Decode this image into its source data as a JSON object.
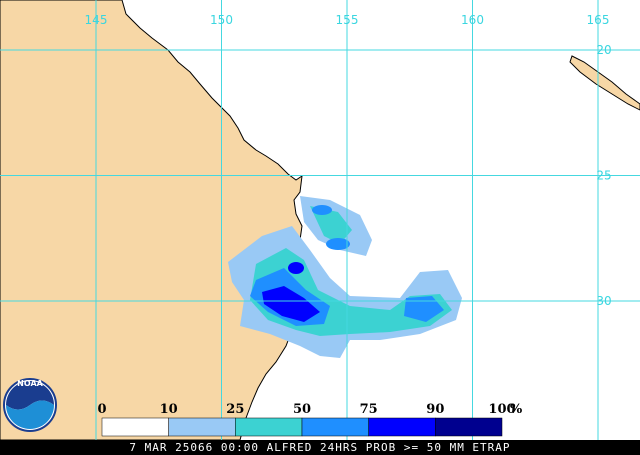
{
  "map": {
    "lon_labels": [
      "145",
      "150",
      "155",
      "160",
      "165"
    ],
    "lat_labels": [
      "20",
      "25",
      "30"
    ]
  },
  "legend": {
    "labels": [
      "0",
      "10",
      "25",
      "50",
      "75",
      "90",
      "100"
    ],
    "unit": "%",
    "colors": [
      "#ffffff",
      "#99c9f5",
      "#3cd2d2",
      "#1f8fff",
      "#0000ff",
      "#00008f"
    ]
  },
  "caption": "7 MAR 25066 00:00 ALFRED 24HRS PROB >= 50 MM ETRAP",
  "logo": "NOAA"
}
